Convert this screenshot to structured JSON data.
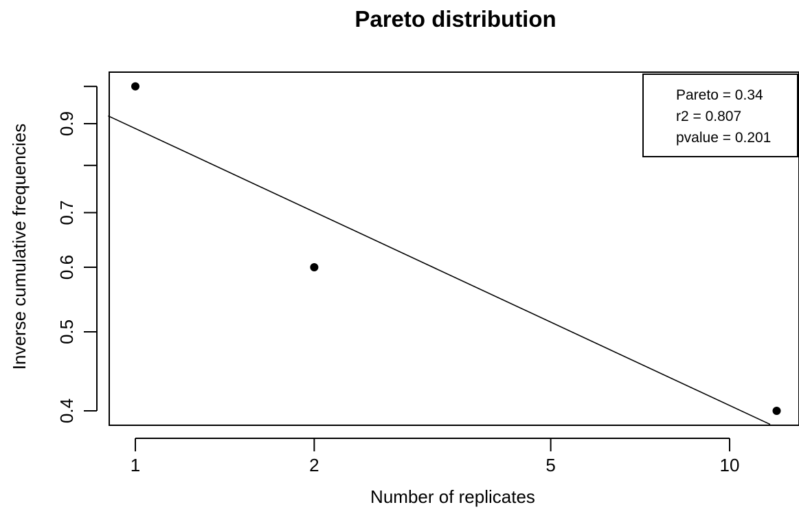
{
  "chart_data": {
    "type": "scatter",
    "title": "Pareto distribution",
    "xlabel": "Number of replicates",
    "ylabel": "Inverse cumulative frequencies",
    "x_scale": "log",
    "y_scale": "log",
    "xlim": [
      0.9,
      13.8
    ],
    "ylim": [
      0.385,
      1.04
    ],
    "x_ticks": [
      1,
      2,
      5,
      10
    ],
    "x_tick_labels": [
      "1",
      "2",
      "5",
      "10"
    ],
    "y_ticks": [
      0.4,
      0.5,
      0.6,
      0.7,
      0.8,
      0.9,
      1.0
    ],
    "y_tick_labels": [
      "0.4",
      "0.5",
      "0.6",
      "0.7",
      "",
      "0.9",
      ""
    ],
    "points": [
      {
        "x": 1,
        "y": 1.0
      },
      {
        "x": 2,
        "y": 0.6
      },
      {
        "x": 12,
        "y": 0.4
      }
    ],
    "fit_line": {
      "x_start": 0.9,
      "y_start": 0.92,
      "x_end": 11.7,
      "y_end": 0.385
    },
    "legend": {
      "placement": "top-right",
      "lines": [
        "Pareto = 0.34",
        "r2 = 0.807",
        "pvalue = 0.201"
      ]
    },
    "grid": false
  }
}
